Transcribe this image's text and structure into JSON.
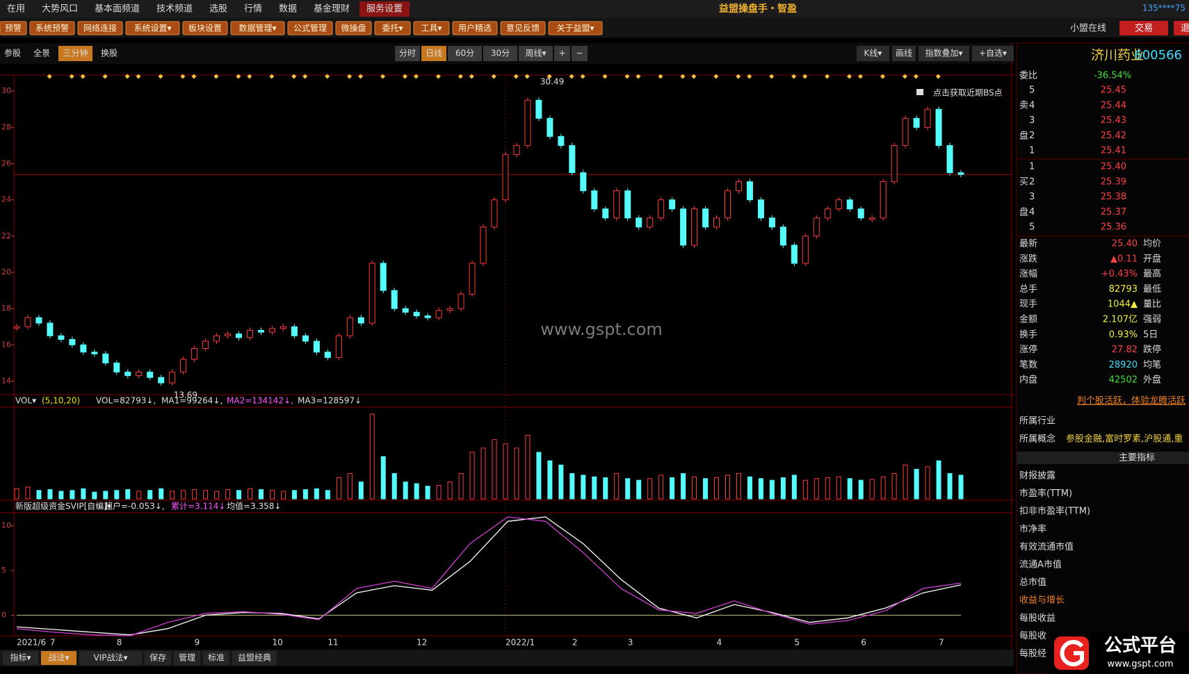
{
  "menu": {
    "items": [
      "在用",
      "大势风口",
      "基本面频道",
      "技术频道",
      "选股",
      "行情",
      "数据",
      "基金理财",
      "服务设置"
    ],
    "active": 8,
    "title": "益盟操盘手・智盈",
    "account": "135****75"
  },
  "toolbar": {
    "items": [
      "预警",
      "系统预警",
      "网络连接",
      "系统设置▾",
      "板块设置",
      "数据管理▾",
      "公式管理",
      "微操盘",
      "委托▾",
      "工具▾",
      "用户精选",
      "意见反馈",
      "关于益盟▾"
    ],
    "online": "小盟在线",
    "trade": "交易",
    "exit": "退"
  },
  "chart_toolbar": {
    "left": [
      "参股",
      "全景",
      "三分钟",
      "换股"
    ],
    "left_active": 2,
    "periods": [
      "分时",
      "日线",
      "60分",
      "30分",
      "周线▾",
      "+",
      "−"
    ],
    "period_active": 1,
    "right": [
      "K线▾",
      "画线",
      "指数叠加▾",
      "+自选▾"
    ]
  },
  "chart_data": {
    "type": "candlestick",
    "categories": [
      "2021/6",
      null,
      null,
      "7",
      null,
      null,
      null,
      null,
      null,
      "8",
      null,
      null,
      null,
      null,
      null,
      null,
      "9",
      null,
      null,
      null,
      null,
      null,
      null,
      "10",
      null,
      null,
      null,
      null,
      "11",
      null,
      null,
      null,
      null,
      null,
      null,
      null,
      "12",
      null,
      null,
      null,
      null,
      null,
      null,
      null,
      "2022/1",
      null,
      null,
      null,
      null,
      null,
      "2",
      null,
      null,
      null,
      null,
      "3",
      null,
      null,
      null,
      null,
      null,
      null,
      null,
      "4",
      null,
      null,
      null,
      null,
      null,
      null,
      "5",
      null,
      null,
      null,
      null,
      null,
      "6",
      null,
      null,
      null,
      null,
      null,
      null,
      "7",
      null,
      null
    ],
    "closes": [
      17.0,
      17.5,
      17.2,
      16.5,
      16.3,
      16.0,
      15.6,
      15.5,
      15.0,
      14.5,
      14.3,
      14.5,
      14.2,
      13.9,
      14.5,
      15.2,
      15.8,
      16.2,
      16.5,
      16.6,
      16.4,
      16.8,
      16.7,
      16.9,
      17.0,
      16.5,
      16.2,
      15.6,
      15.3,
      16.5,
      17.5,
      17.2,
      20.5,
      19.0,
      18.0,
      17.8,
      17.6,
      17.5,
      17.9,
      18.0,
      18.8,
      20.5,
      22.5,
      24.0,
      26.5,
      27.0,
      29.5,
      28.5,
      27.5,
      27.0,
      25.5,
      24.5,
      23.5,
      23.0,
      24.5,
      23.0,
      22.5,
      23.0,
      24.0,
      23.5,
      21.5,
      23.5,
      22.5,
      23.0,
      24.5,
      25.0,
      24.0,
      23.0,
      22.5,
      21.5,
      20.5,
      22.0,
      23.0,
      23.5,
      24.0,
      23.5,
      23.0,
      23.0,
      25.0,
      27.0,
      28.5,
      28.0,
      29.0,
      27.0,
      25.5,
      25.4
    ],
    "ylim": [
      13.25,
      30.85
    ],
    "yticks": [
      14,
      16,
      18,
      20,
      22,
      24,
      26,
      28,
      30
    ],
    "up_color": "#ff3c3c",
    "down_color": "#54fcfc",
    "high_label": "30.49",
    "low_label": "13.69",
    "bs_hint": "点击获取近期BS点",
    "watermark": "www.gspt.com",
    "volume": {
      "header": [
        {
          "text": "VOL▾",
          "color": "#e0e0e0"
        },
        {
          "text": "(5,10,20)",
          "color": "#e8e800"
        },
        {
          "text": "VOL=82793↓,",
          "color": "#e0e0e0"
        },
        {
          "text": "MA1=99264↓,",
          "color": "#e0e0e0"
        },
        {
          "text": "MA2=134142↓,",
          "color": "#ff55ff"
        },
        {
          "text": "MA3=128597↓",
          "color": "#e0e0e0"
        }
      ],
      "values": [
        12,
        14,
        10,
        11,
        9,
        10,
        12,
        8,
        9,
        10,
        11,
        9,
        10,
        12,
        9,
        10,
        11,
        10,
        9,
        11,
        10,
        12,
        11,
        10,
        9,
        10,
        11,
        12,
        10,
        25,
        30,
        20,
        100,
        50,
        30,
        20,
        18,
        15,
        16,
        20,
        30,
        55,
        60,
        70,
        65,
        60,
        75,
        55,
        45,
        40,
        30,
        28,
        26,
        25,
        30,
        24,
        22,
        24,
        28,
        25,
        30,
        26,
        24,
        25,
        28,
        30,
        26,
        24,
        22,
        25,
        28,
        22,
        24,
        25,
        26,
        24,
        22,
        23,
        26,
        30,
        40,
        35,
        38,
        45,
        30,
        28
      ],
      "ylim": [
        0,
        105
      ]
    },
    "indicator": {
      "header": [
        {
          "text": "新版超级资金SVIP[自编]▾",
          "color": "#e0e0e0"
        },
        {
          "text": "超户=-0.053↓,",
          "color": "#e0e0e0"
        },
        {
          "text": "累计=3.114↓",
          "color": "#ff55ff"
        },
        {
          "text": "均值=3.358↓",
          "color": "#e0e0e0"
        }
      ],
      "ylim": [
        -2.3,
        11.3
      ],
      "yticks": [
        0,
        5,
        10
      ],
      "series": [
        {
          "color": "#ffffff",
          "values": [
            -1.3,
            -1.6,
            -1.9,
            -2.2,
            -1.5,
            0,
            0.3,
            0.2,
            -0.4,
            2.5,
            3.3,
            2.8,
            6,
            10.5,
            11,
            8,
            4,
            0.8,
            -0.3,
            1.2,
            0.3,
            -0.8,
            -0.3,
            0.8,
            2.5,
            3.4
          ]
        },
        {
          "color": "#d040d0",
          "values": [
            -1.5,
            -1.9,
            -2.2,
            -2.3,
            -0.8,
            0.2,
            0.4,
            0.1,
            -0.5,
            3,
            3.8,
            3,
            8,
            11,
            10.5,
            7,
            3,
            0.6,
            0.2,
            1.6,
            0.2,
            -1,
            -0.6,
            0.5,
            3,
            3.6
          ]
        }
      ]
    }
  },
  "quote": {
    "name": "济川药业",
    "code": "600566",
    "weibi_label": "委比",
    "weibi": "-36.54%",
    "sell_side": [
      "卖",
      "盘"
    ],
    "buy_side": [
      "买",
      "盘"
    ],
    "asks": [
      {
        "level": 5,
        "price": "25.45"
      },
      {
        "level": 4,
        "price": "25.44"
      },
      {
        "level": 3,
        "price": "25.43"
      },
      {
        "level": 2,
        "price": "25.42"
      },
      {
        "level": 1,
        "price": "25.41"
      }
    ],
    "bids": [
      {
        "level": 1,
        "price": "25.40"
      },
      {
        "level": 2,
        "price": "25.39"
      },
      {
        "level": 3,
        "price": "25.38"
      },
      {
        "level": 4,
        "price": "25.37"
      },
      {
        "level": 5,
        "price": "25.36"
      }
    ],
    "stats": [
      {
        "label": "最新",
        "value": "25.40",
        "label2": "均价"
      },
      {
        "label": "涨跌",
        "value": "▲0.11",
        "label2": "开盘"
      },
      {
        "label": "涨幅",
        "value": "+0.43%",
        "label2": "最高"
      },
      {
        "label": "总手",
        "value": "82793",
        "label2": "最低"
      },
      {
        "label": "现手",
        "value": "1044▲",
        "label2": "量比"
      },
      {
        "label": "金额",
        "value": "2.107亿",
        "label2": "强弱"
      },
      {
        "label": "换手",
        "value": "0.93%",
        "label2": "5日"
      },
      {
        "label": "涨停",
        "value": "27.82",
        "label2": "跌停"
      },
      {
        "label": "笔数",
        "value": "28920",
        "label2": "均笔"
      },
      {
        "label": "内盘",
        "value": "42502",
        "label2": "外盘"
      }
    ],
    "promo": "判个股活跃，体验龙腾活跃",
    "industry": "所属行业",
    "concept_label": "所属概念",
    "concept": "参股金融,富时罗素,沪股通,重",
    "main_index": "主要指标",
    "items": [
      "财报披露",
      "市盈率(TTM)",
      "扣非市盈率(TTM)",
      "市净率",
      "有效流通市值",
      "流通A市值",
      "总市值",
      "收益与增长",
      "每股收益",
      "每股收",
      "每股经"
    ]
  },
  "bottom_tabs": [
    "指标▾",
    "战法▾",
    "VIP战法▾",
    "保存",
    "管理",
    "标准",
    "益盟经典"
  ],
  "logo": {
    "brand": "公式平台",
    "url": "www.gspt.com"
  }
}
